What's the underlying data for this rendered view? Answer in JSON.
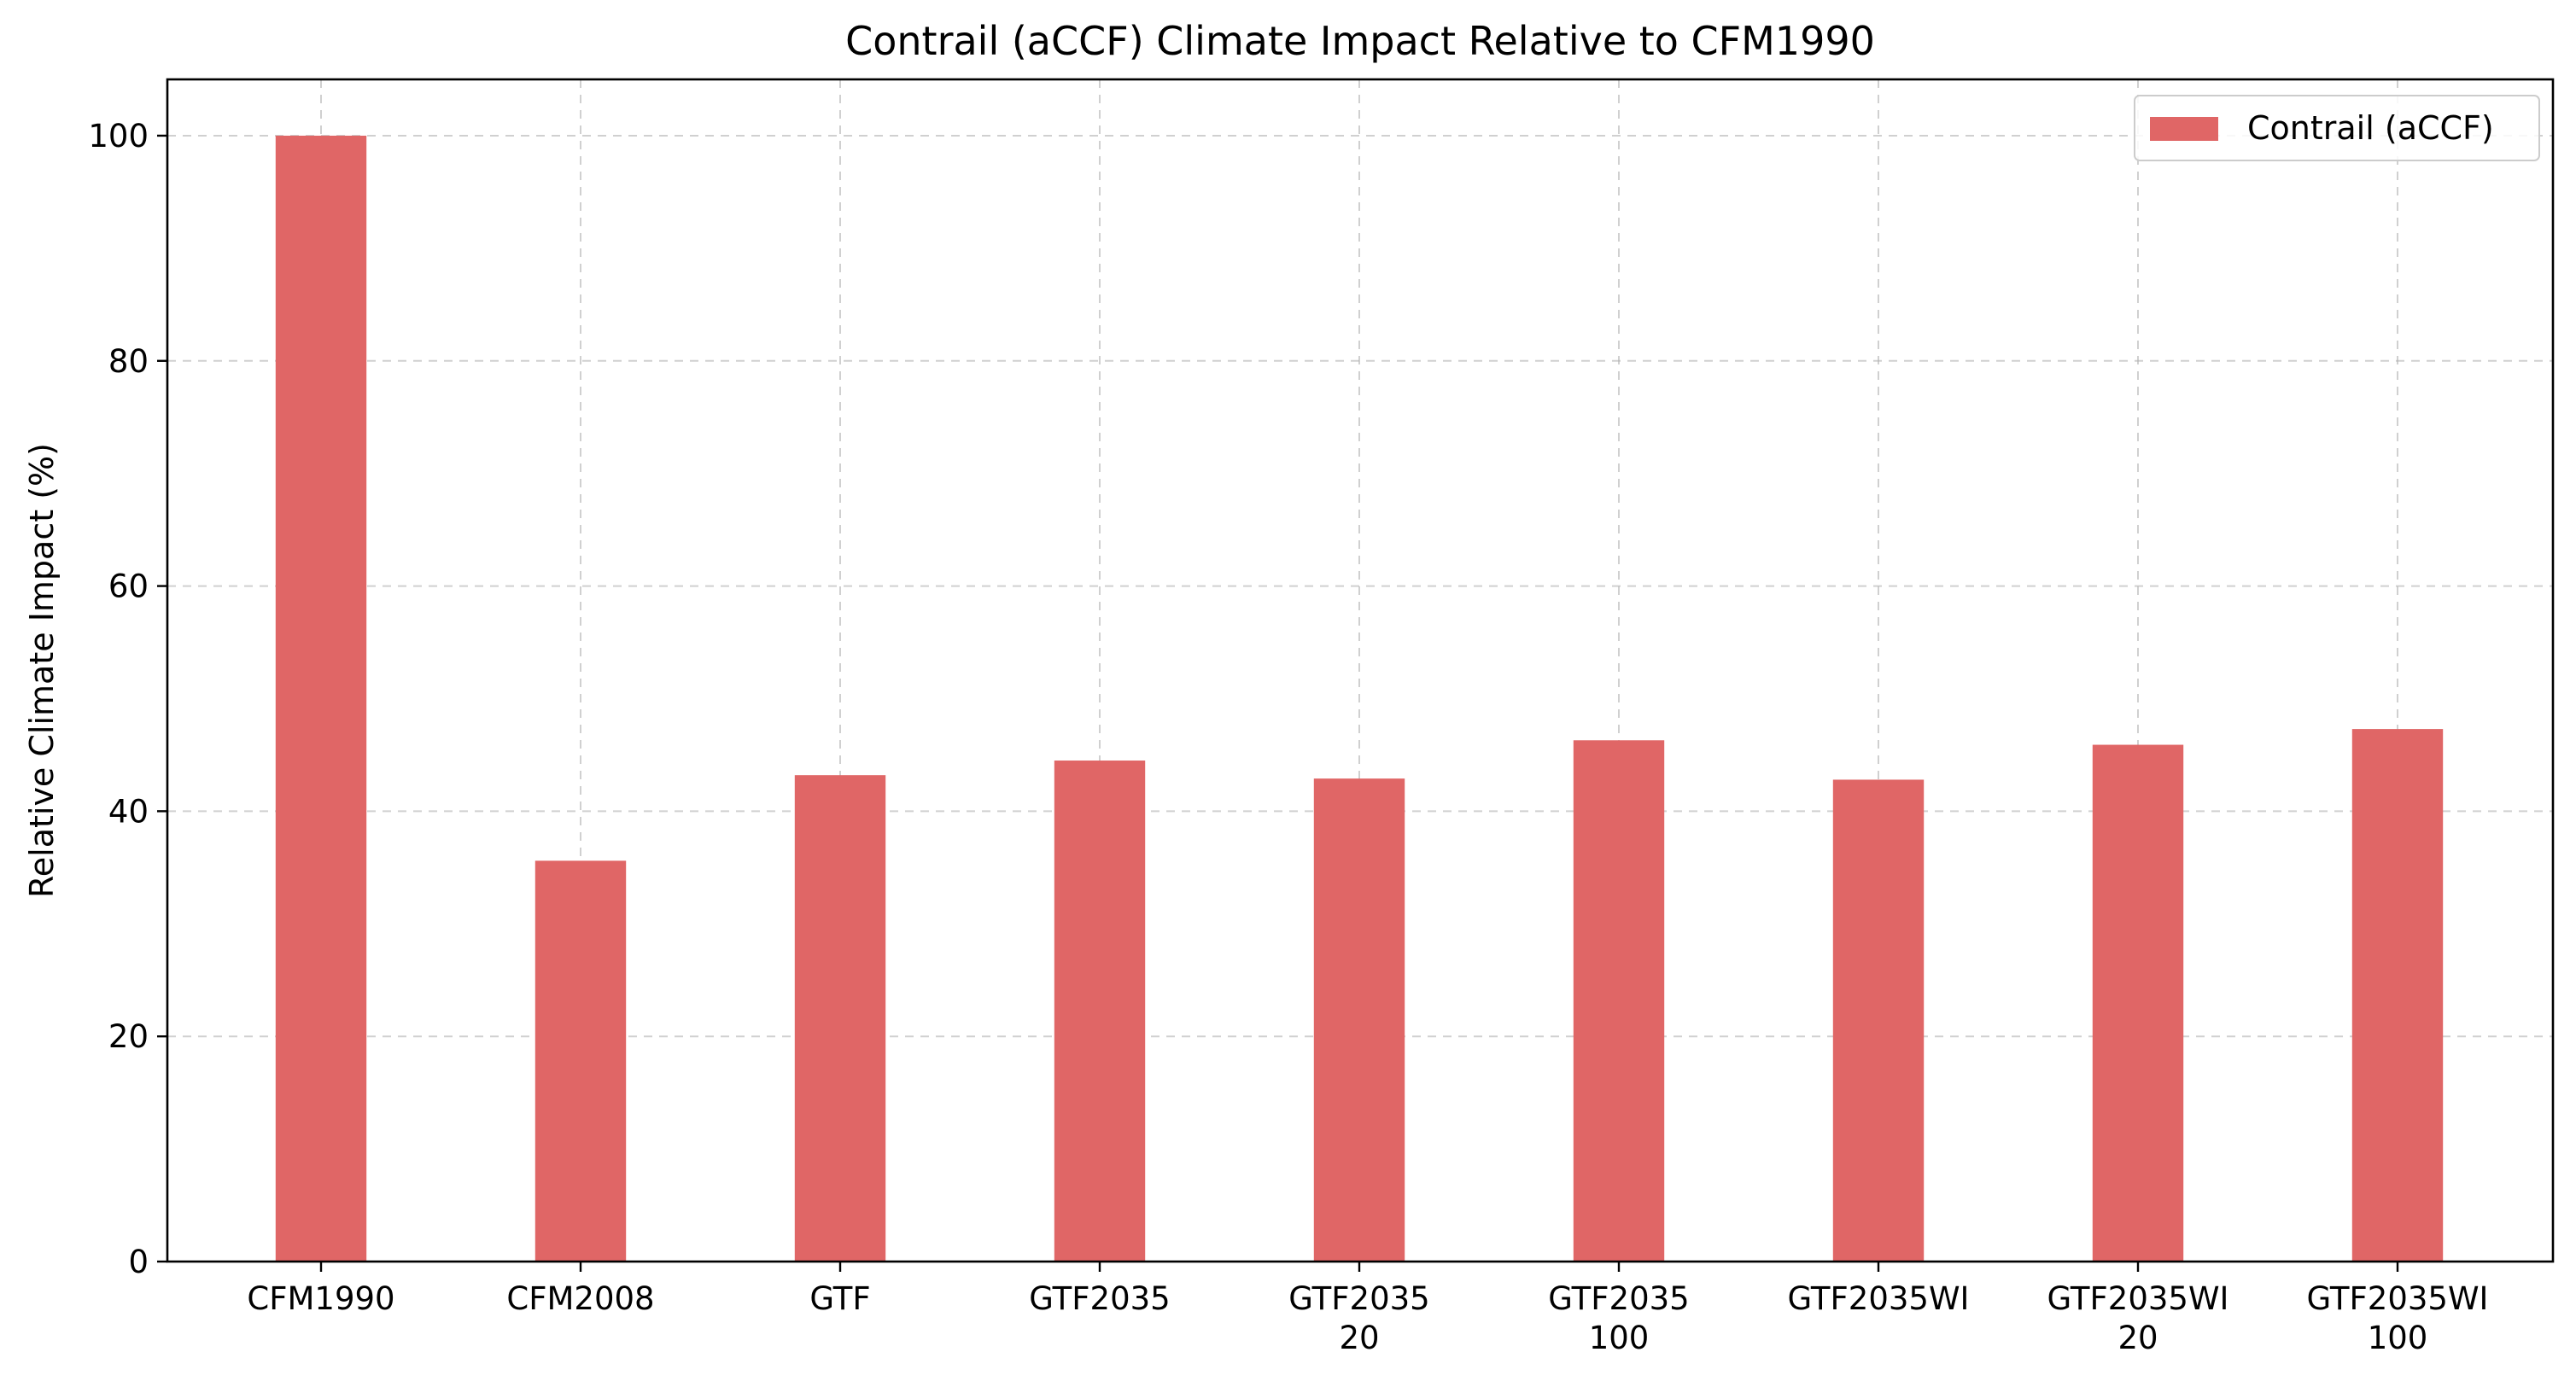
{
  "chart_data": {
    "type": "bar",
    "title": "Contrail (aCCF) Climate Impact Relative to CFM1990",
    "xlabel": "",
    "ylabel": "Relative Climate Impact (%)",
    "categories": [
      [
        "CFM1990"
      ],
      [
        "CFM2008"
      ],
      [
        "GTF"
      ],
      [
        "GTF2035"
      ],
      [
        "GTF2035",
        "20"
      ],
      [
        "GTF2035",
        "100"
      ],
      [
        "GTF2035WI"
      ],
      [
        "GTF2035WI",
        "20"
      ],
      [
        "GTF2035WI",
        "100"
      ]
    ],
    "series": [
      {
        "name": "Contrail (aCCF)",
        "color": "#e06666",
        "values": [
          100,
          35.6,
          43.2,
          44.5,
          42.9,
          46.3,
          42.8,
          45.9,
          47.3
        ]
      }
    ],
    "ylim": [
      0,
      105
    ],
    "yticks": [
      0,
      20,
      40,
      60,
      80,
      100
    ],
    "grid": true,
    "legend_position": "top-right"
  }
}
